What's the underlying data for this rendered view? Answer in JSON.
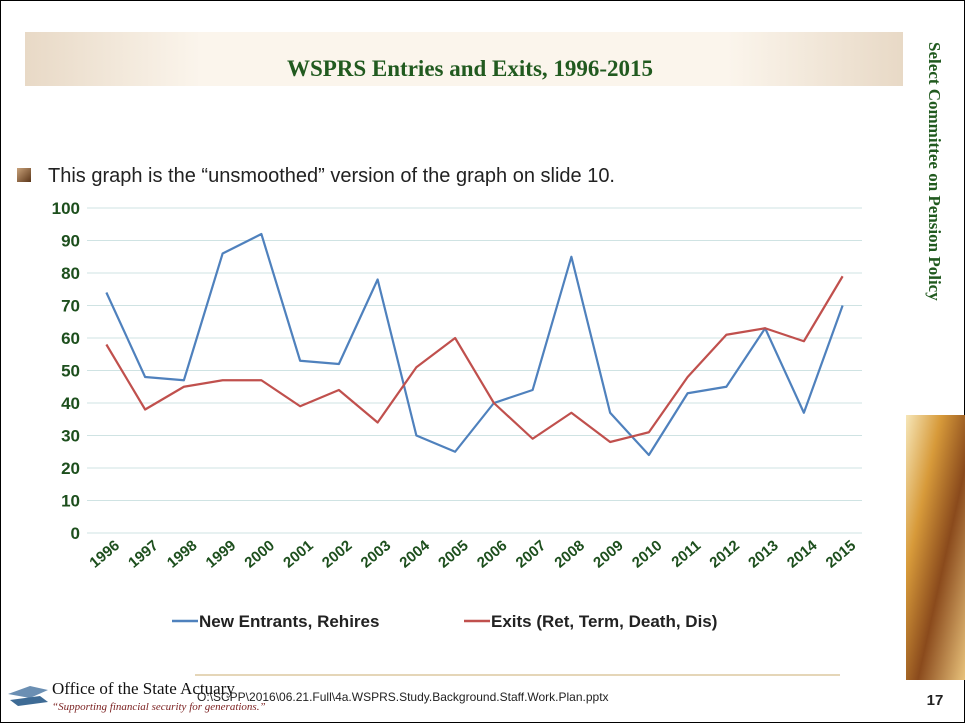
{
  "slide_title": "WSPRS Entries and Exits, 1996-2015",
  "bullet": "This graph is the “unsmoothed” version of the graph on slide 10.",
  "side_title": "Select Committee on Pension Policy",
  "footer": {
    "org": "Office of the State Actuary",
    "tagline": "“Supporting financial security for generations.”",
    "file_path": "O:\\SCPP\\2016\\06.21.Full\\4a.WSPRS.Study.Background.Staff.Work.Plan.pptx",
    "page": "17"
  },
  "chart_data": {
    "type": "line",
    "categories": [
      "1996",
      "1997",
      "1998",
      "1999",
      "2000",
      "2001",
      "2002",
      "2003",
      "2004",
      "2005",
      "2006",
      "2007",
      "2008",
      "2009",
      "2010",
      "2011",
      "2012",
      "2013",
      "2014",
      "2015"
    ],
    "series": [
      {
        "name": "New Entrants, Rehires",
        "color": "#4f81bd",
        "values": [
          74,
          48,
          47,
          86,
          92,
          53,
          52,
          78,
          30,
          25,
          40,
          44,
          85,
          37,
          24,
          43,
          45,
          63,
          37,
          70
        ]
      },
      {
        "name": "Exits (Ret, Term, Death, Dis)",
        "color": "#c0504d",
        "values": [
          58,
          38,
          45,
          47,
          47,
          39,
          44,
          34,
          51,
          60,
          40,
          29,
          37,
          28,
          31,
          48,
          61,
          63,
          59,
          79
        ]
      }
    ],
    "ylim": [
      0,
      100
    ],
    "yticks": [
      0,
      10,
      20,
      30,
      40,
      50,
      60,
      70,
      80,
      90,
      100
    ],
    "grid": true,
    "legend": "bottom"
  }
}
